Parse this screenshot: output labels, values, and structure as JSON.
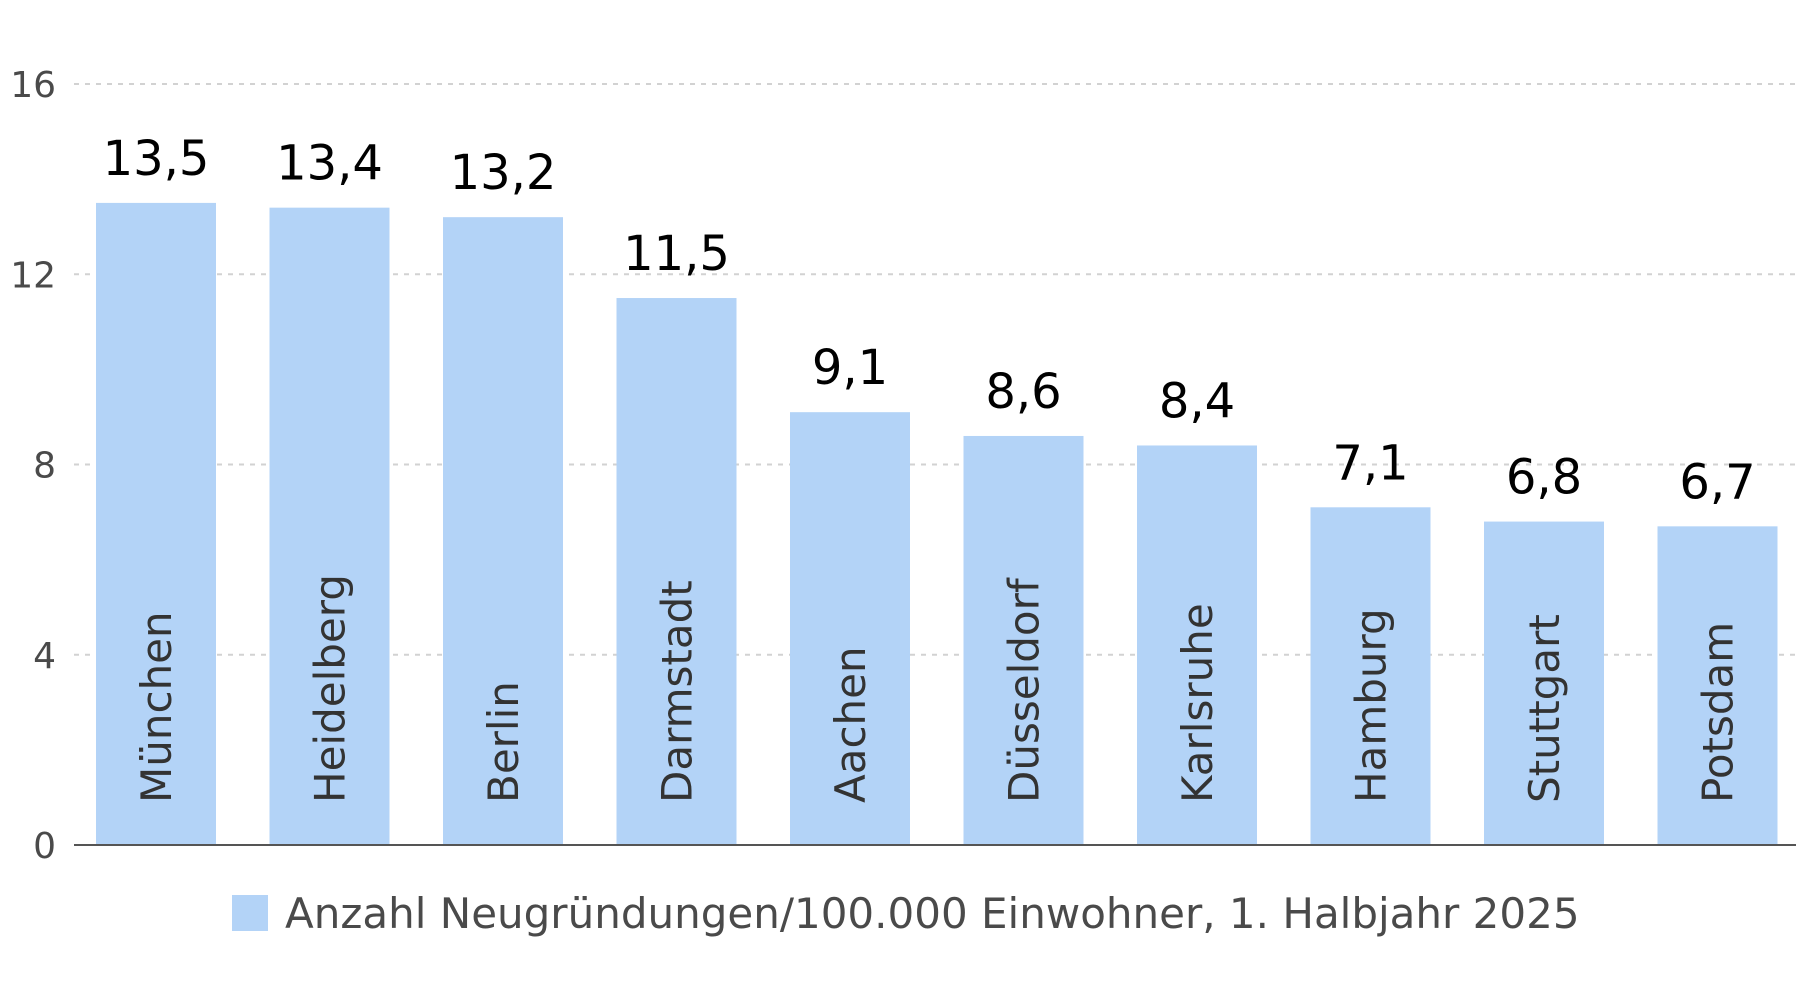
{
  "chart_data": {
    "type": "bar",
    "categories": [
      "München",
      "Heidelberg",
      "Berlin",
      "Darmstadt",
      "Aachen",
      "Düsseldorf",
      "Karlsruhe",
      "Hamburg",
      "Stuttgart",
      "Potsdam"
    ],
    "series": [
      {
        "name": "Anzahl Neugründungen/100.000 Einwohner, 1. Halbjahr 2025",
        "values": [
          13.5,
          13.4,
          13.2,
          11.5,
          9.1,
          8.6,
          8.4,
          7.1,
          6.8,
          6.7
        ],
        "value_labels": [
          "13,5",
          "13,4",
          "13,2",
          "11,5",
          "9,1",
          "8,6",
          "8,4",
          "7,1",
          "6,8",
          "6,7"
        ],
        "color": "#b3d3f7"
      }
    ],
    "title": "",
    "xlabel": "",
    "ylabel": "",
    "ylim": [
      0,
      16
    ],
    "yticks": [
      0,
      4,
      8,
      12,
      16
    ],
    "ytick_labels": [
      "0",
      "4",
      "8",
      "12",
      "16"
    ],
    "grid": true,
    "legend_position": "bottom"
  }
}
